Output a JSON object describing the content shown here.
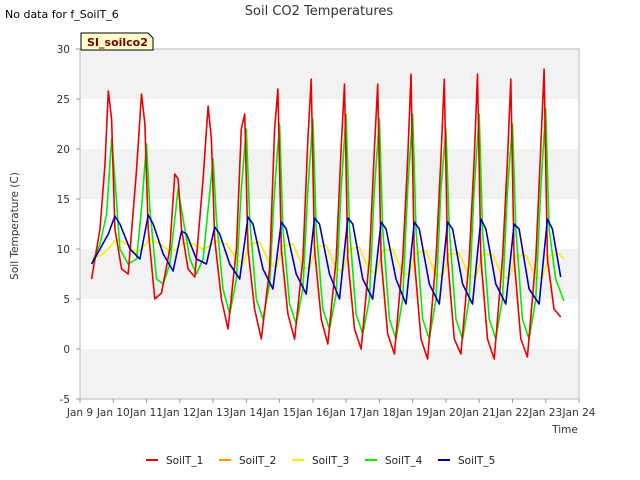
{
  "header": {
    "title": "Soil CO2 Temperatures",
    "note": "No data for f_SoilT_6",
    "site_box": "SI_soilco2"
  },
  "chart_data": {
    "type": "line",
    "title": "Soil CO2 Temperatures",
    "xlabel": "Time",
    "ylabel": "Soil Temperature (C)",
    "xlim": [
      9,
      24
    ],
    "ylim": [
      -5,
      30
    ],
    "x_ticks": [
      9,
      10,
      11,
      12,
      13,
      14,
      15,
      16,
      17,
      18,
      19,
      20,
      21,
      22,
      23,
      24
    ],
    "x_tick_labels": [
      "Jan 9",
      "Jan 10",
      "Jan 11",
      "Jan 12",
      "Jan 13",
      "Jan 14",
      "Jan 15",
      "Jan 16",
      "Jan 17",
      "Jan 18",
      "Jan 19",
      "Jan 20",
      "Jan 21",
      "Jan 22",
      "Jan 23",
      "Jan 24"
    ],
    "y_ticks": [
      -5,
      0,
      5,
      10,
      15,
      20,
      25,
      30
    ],
    "y_tick_labels": [
      "-5",
      "0",
      "5",
      "10",
      "15",
      "20",
      "25",
      "30"
    ],
    "grid": "horizontal bands",
    "legend_position": "bottom",
    "series": [
      {
        "name": "SoilT_1",
        "color": "#ee0000",
        "x": [
          9.35,
          9.6,
          9.75,
          9.85,
          9.95,
          10.05,
          10.25,
          10.45,
          10.7,
          10.85,
          10.95,
          11.05,
          11.25,
          11.45,
          11.7,
          11.85,
          11.95,
          12.05,
          12.25,
          12.45,
          12.7,
          12.85,
          12.95,
          13.05,
          13.25,
          13.45,
          13.7,
          13.85,
          13.95,
          14.05,
          14.25,
          14.45,
          14.7,
          14.85,
          14.95,
          15.05,
          15.25,
          15.45,
          15.7,
          15.85,
          15.95,
          16.05,
          16.25,
          16.45,
          16.7,
          16.85,
          16.95,
          17.05,
          17.25,
          17.45,
          17.7,
          17.85,
          17.95,
          18.05,
          18.25,
          18.45,
          18.7,
          18.85,
          18.95,
          19.05,
          19.25,
          19.45,
          19.7,
          19.85,
          19.95,
          20.05,
          20.25,
          20.45,
          20.7,
          20.85,
          20.95,
          21.05,
          21.25,
          21.45,
          21.7,
          21.85,
          21.95,
          22.05,
          22.25,
          22.45,
          22.7,
          22.85,
          22.95,
          23.05,
          23.25,
          23.45
        ],
        "y": [
          7.0,
          12.0,
          18.5,
          25.8,
          23.0,
          12.0,
          8.0,
          7.5,
          18.0,
          25.5,
          22.5,
          12.0,
          5.0,
          5.6,
          10.0,
          17.5,
          17.0,
          12.0,
          8.0,
          7.2,
          17.0,
          24.3,
          21.0,
          11.0,
          5.0,
          2.0,
          10.0,
          22.0,
          23.5,
          10.0,
          4.0,
          1.0,
          8.0,
          22.0,
          26.0,
          10.0,
          3.5,
          1.0,
          9.0,
          21.0,
          27.0,
          10.0,
          3.0,
          0.5,
          9.0,
          20.0,
          26.5,
          9.0,
          2.0,
          0.0,
          9.0,
          20.0,
          26.5,
          9.0,
          1.5,
          -0.5,
          9.0,
          19.0,
          27.5,
          9.0,
          1.0,
          -1.0,
          9.0,
          19.0,
          27.0,
          9.0,
          1.0,
          -0.5,
          9.0,
          19.0,
          27.5,
          9.0,
          1.0,
          -1.0,
          9.0,
          19.0,
          27.0,
          9.0,
          1.0,
          -0.8,
          9.0,
          20.0,
          28.0,
          9.0,
          4.0,
          3.2
        ]
      },
      {
        "name": "SoilT_2",
        "color": "#ff9900",
        "x": [],
        "y": []
      },
      {
        "name": "SoilT_3",
        "color": "#ffee00",
        "x": [
          9.35,
          9.7,
          9.9,
          10.1,
          10.4,
          10.7,
          10.9,
          11.1,
          11.4,
          11.7,
          11.9,
          12.1,
          12.4,
          12.7,
          12.9,
          13.1,
          13.4,
          13.7,
          13.9,
          14.1,
          14.4,
          14.7,
          14.9,
          15.1,
          15.4,
          15.7,
          15.9,
          16.1,
          16.4,
          16.7,
          16.9,
          17.1,
          17.4,
          17.7,
          17.9,
          18.1,
          18.4,
          18.7,
          18.9,
          19.1,
          19.4,
          19.7,
          19.9,
          20.1,
          20.4,
          20.7,
          20.9,
          21.1,
          21.4,
          21.7,
          21.9,
          22.1,
          22.4,
          22.7,
          22.9,
          23.1,
          23.4,
          23.55
        ],
        "y": [
          9.0,
          9.5,
          10.2,
          11.0,
          10.5,
          9.6,
          10.2,
          11.0,
          10.5,
          9.8,
          10.0,
          10.6,
          10.5,
          10.0,
          10.3,
          10.8,
          10.5,
          9.0,
          8.5,
          10.5,
          10.7,
          8.5,
          8.2,
          10.3,
          10.5,
          8.2,
          8.0,
          10.2,
          10.4,
          8.0,
          7.8,
          10.0,
          10.2,
          7.8,
          7.6,
          9.8,
          10.0,
          7.6,
          7.4,
          9.6,
          9.8,
          7.4,
          7.3,
          9.5,
          9.6,
          7.3,
          7.2,
          9.4,
          9.5,
          7.2,
          7.1,
          9.3,
          9.4,
          7.1,
          7.2,
          9.3,
          9.5,
          9.0
        ]
      },
      {
        "name": "SoilT_4",
        "color": "#00ee00",
        "x": [
          9.35,
          9.6,
          9.8,
          9.95,
          10.05,
          10.2,
          10.45,
          10.7,
          10.85,
          11.0,
          11.1,
          11.3,
          11.5,
          11.7,
          11.85,
          11.95,
          12.1,
          12.3,
          12.5,
          12.7,
          12.85,
          13.0,
          13.1,
          13.3,
          13.5,
          13.7,
          13.85,
          14.0,
          14.1,
          14.3,
          14.5,
          14.7,
          14.85,
          15.0,
          15.1,
          15.3,
          15.5,
          15.7,
          15.85,
          16.0,
          16.1,
          16.3,
          16.5,
          16.7,
          16.85,
          17.0,
          17.1,
          17.3,
          17.5,
          17.7,
          17.85,
          18.0,
          18.1,
          18.3,
          18.5,
          18.7,
          18.85,
          19.0,
          19.1,
          19.3,
          19.5,
          19.7,
          19.85,
          20.0,
          20.1,
          20.3,
          20.5,
          20.7,
          20.85,
          21.0,
          21.1,
          21.3,
          21.5,
          21.7,
          21.85,
          22.0,
          22.1,
          22.3,
          22.5,
          22.7,
          22.85,
          23.0,
          23.1,
          23.3,
          23.55
        ],
        "y": [
          8.5,
          10.5,
          13.5,
          21.0,
          17.0,
          10.0,
          8.5,
          9.0,
          14.0,
          20.5,
          14.0,
          7.0,
          6.5,
          8.5,
          13.0,
          16.0,
          13.0,
          9.0,
          7.5,
          9.0,
          14.0,
          19.0,
          13.0,
          6.0,
          3.5,
          7.0,
          16.0,
          22.0,
          13.0,
          5.0,
          3.0,
          6.5,
          16.0,
          22.5,
          12.0,
          4.5,
          2.5,
          6.0,
          16.0,
          23.0,
          12.0,
          4.0,
          2.0,
          5.5,
          16.0,
          23.5,
          12.0,
          3.5,
          1.5,
          5.0,
          16.0,
          23.0,
          12.0,
          3.0,
          1.0,
          5.0,
          16.0,
          23.5,
          12.0,
          3.0,
          1.0,
          5.0,
          16.0,
          22.0,
          12.0,
          3.0,
          1.0,
          5.0,
          16.0,
          23.5,
          12.0,
          3.0,
          1.0,
          5.0,
          16.0,
          22.5,
          12.0,
          3.0,
          1.0,
          5.0,
          16.0,
          24.0,
          12.0,
          7.0,
          4.8
        ]
      },
      {
        "name": "SoilT_5",
        "color": "#0000bb",
        "x": [
          9.35,
          9.6,
          9.85,
          10.05,
          10.2,
          10.5,
          10.8,
          11.05,
          11.2,
          11.5,
          11.8,
          12.05,
          12.2,
          12.5,
          12.8,
          13.05,
          13.2,
          13.5,
          13.8,
          14.05,
          14.2,
          14.5,
          14.8,
          15.05,
          15.2,
          15.5,
          15.8,
          16.05,
          16.2,
          16.5,
          16.8,
          17.05,
          17.2,
          17.5,
          17.8,
          18.05,
          18.2,
          18.5,
          18.8,
          19.05,
          19.2,
          19.5,
          19.8,
          20.05,
          20.2,
          20.5,
          20.8,
          21.05,
          21.2,
          21.5,
          21.8,
          22.05,
          22.2,
          22.5,
          22.8,
          23.05,
          23.2,
          23.45
        ],
        "y": [
          8.5,
          10.0,
          11.5,
          13.3,
          12.5,
          10.0,
          9.0,
          13.4,
          12.5,
          9.5,
          7.8,
          11.8,
          11.5,
          9.0,
          8.5,
          12.2,
          11.5,
          8.5,
          7.0,
          13.2,
          12.5,
          8.0,
          6.0,
          12.7,
          12.0,
          7.5,
          5.5,
          13.1,
          12.5,
          7.5,
          5.0,
          13.1,
          12.5,
          7.0,
          5.0,
          12.7,
          12.0,
          7.0,
          4.5,
          12.7,
          12.0,
          6.5,
          4.5,
          12.7,
          12.0,
          6.5,
          4.5,
          13.0,
          12.0,
          6.5,
          4.5,
          12.5,
          12.0,
          6.0,
          4.5,
          13.0,
          12.0,
          7.2
        ]
      }
    ]
  }
}
